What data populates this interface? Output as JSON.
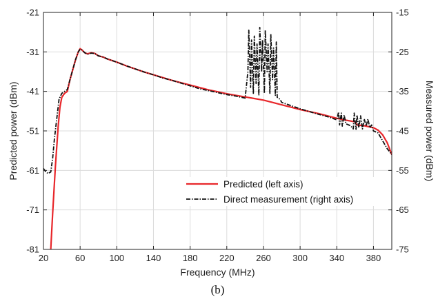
{
  "chart_data": {
    "type": "line",
    "caption": "(b)",
    "xlabel": "Frequency (MHz)",
    "ylabel_left": "Predicted power (dBm)",
    "ylabel_right": "Measured power (dBm)",
    "xlim": [
      20,
      400
    ],
    "ylim_left": [
      -81,
      -21
    ],
    "ylim_right": [
      -75,
      -15
    ],
    "xticks": [
      20,
      60,
      100,
      140,
      180,
      220,
      260,
      300,
      340,
      380
    ],
    "yticks_left": [
      -21,
      -31,
      -41,
      -51,
      -61,
      -71,
      -81
    ],
    "yticks_right": [
      -15,
      -25,
      -35,
      -45,
      -55,
      -65,
      -75
    ],
    "grid": true,
    "legend_position": "lower-right",
    "series": [
      {
        "name": "Predicted (left axis)",
        "axis": "left",
        "color": "#e8262a",
        "style": "solid",
        "x": [
          28,
          30,
          33,
          36,
          38,
          40,
          43,
          46,
          49,
          52,
          55,
          58,
          60,
          62,
          65,
          68,
          72,
          76,
          80,
          85,
          90,
          100,
          110,
          120,
          130,
          140,
          150,
          160,
          170,
          180,
          190,
          200,
          210,
          220,
          230,
          240,
          250,
          260,
          270,
          280,
          290,
          300,
          310,
          320,
          330,
          340,
          350,
          360,
          362,
          370,
          380,
          385,
          390,
          395,
          400
        ],
        "y": [
          -81,
          -72,
          -60,
          -50,
          -45,
          -42.5,
          -41.5,
          -41,
          -38,
          -35.5,
          -33,
          -31,
          -30.2,
          -30.5,
          -31.2,
          -31.5,
          -31.2,
          -31.4,
          -32,
          -32.3,
          -32.8,
          -33.6,
          -34.5,
          -35.3,
          -36.1,
          -36.8,
          -37.5,
          -38.2,
          -38.8,
          -39.4,
          -40,
          -40.6,
          -41.1,
          -41.6,
          -42,
          -42.4,
          -42.8,
          -43.2,
          -43.8,
          -44.4,
          -45,
          -45.6,
          -46.1,
          -46.6,
          -47.2,
          -47.8,
          -48.3,
          -48.7,
          -49.5,
          -49.7,
          -50.2,
          -50.8,
          -52,
          -54,
          -57
        ]
      },
      {
        "name": "Direct measurement (right axis)",
        "axis": "right",
        "color": "#111111",
        "style": "dashdot",
        "x": [
          20,
          22,
          25,
          28,
          30,
          32,
          35,
          37,
          40,
          43,
          46,
          49,
          52,
          55,
          58,
          60,
          62,
          65,
          68,
          72,
          76,
          80,
          85,
          90,
          100,
          110,
          120,
          130,
          140,
          150,
          160,
          170,
          180,
          190,
          200,
          210,
          220,
          230,
          240,
          243,
          244,
          246,
          247,
          249,
          250,
          252,
          253,
          255,
          256,
          258,
          259,
          261,
          262,
          264,
          265,
          267,
          268,
          270,
          271,
          273,
          274,
          275,
          278,
          280,
          290,
          300,
          310,
          320,
          330,
          340,
          342,
          343,
          345,
          346,
          348,
          350,
          355,
          358,
          359,
          361,
          362,
          364,
          366,
          368,
          370,
          372,
          374,
          376,
          378,
          380,
          385,
          390,
          395,
          400
        ],
        "y": [
          -54.5,
          -55.2,
          -55.8,
          -55.4,
          -52,
          -47,
          -41,
          -37,
          -35.5,
          -35,
          -34.5,
          -32,
          -29.5,
          -27,
          -25,
          -24.3,
          -24.5,
          -25.2,
          -25.6,
          -25.3,
          -25.4,
          -26,
          -26.3,
          -26.8,
          -27.6,
          -28.5,
          -29.3,
          -30.1,
          -30.8,
          -31.6,
          -32.2,
          -32.9,
          -33.6,
          -34.3,
          -34.8,
          -35.3,
          -35.8,
          -36.2,
          -36.7,
          -30,
          -19.5,
          -34,
          -22,
          -35.5,
          -21,
          -33,
          -23,
          -36,
          -18.8,
          -30,
          -22,
          -35.5,
          -19.5,
          -30,
          -23,
          -35.5,
          -20.5,
          -32,
          -24,
          -36,
          -22.5,
          -36.5,
          -37,
          -37.8,
          -38.6,
          -39.4,
          -40.1,
          -40.8,
          -41.4,
          -42.2,
          -40.2,
          -43.5,
          -40.5,
          -43.8,
          -41,
          -43.2,
          -43.7,
          -44.5,
          -40.5,
          -44.6,
          -41,
          -44.2,
          -41.2,
          -44.5,
          -42,
          -43.8,
          -42,
          -44.2,
          -43.5,
          -45,
          -45.5,
          -47.5,
          -49.5,
          -51
        ]
      }
    ]
  }
}
